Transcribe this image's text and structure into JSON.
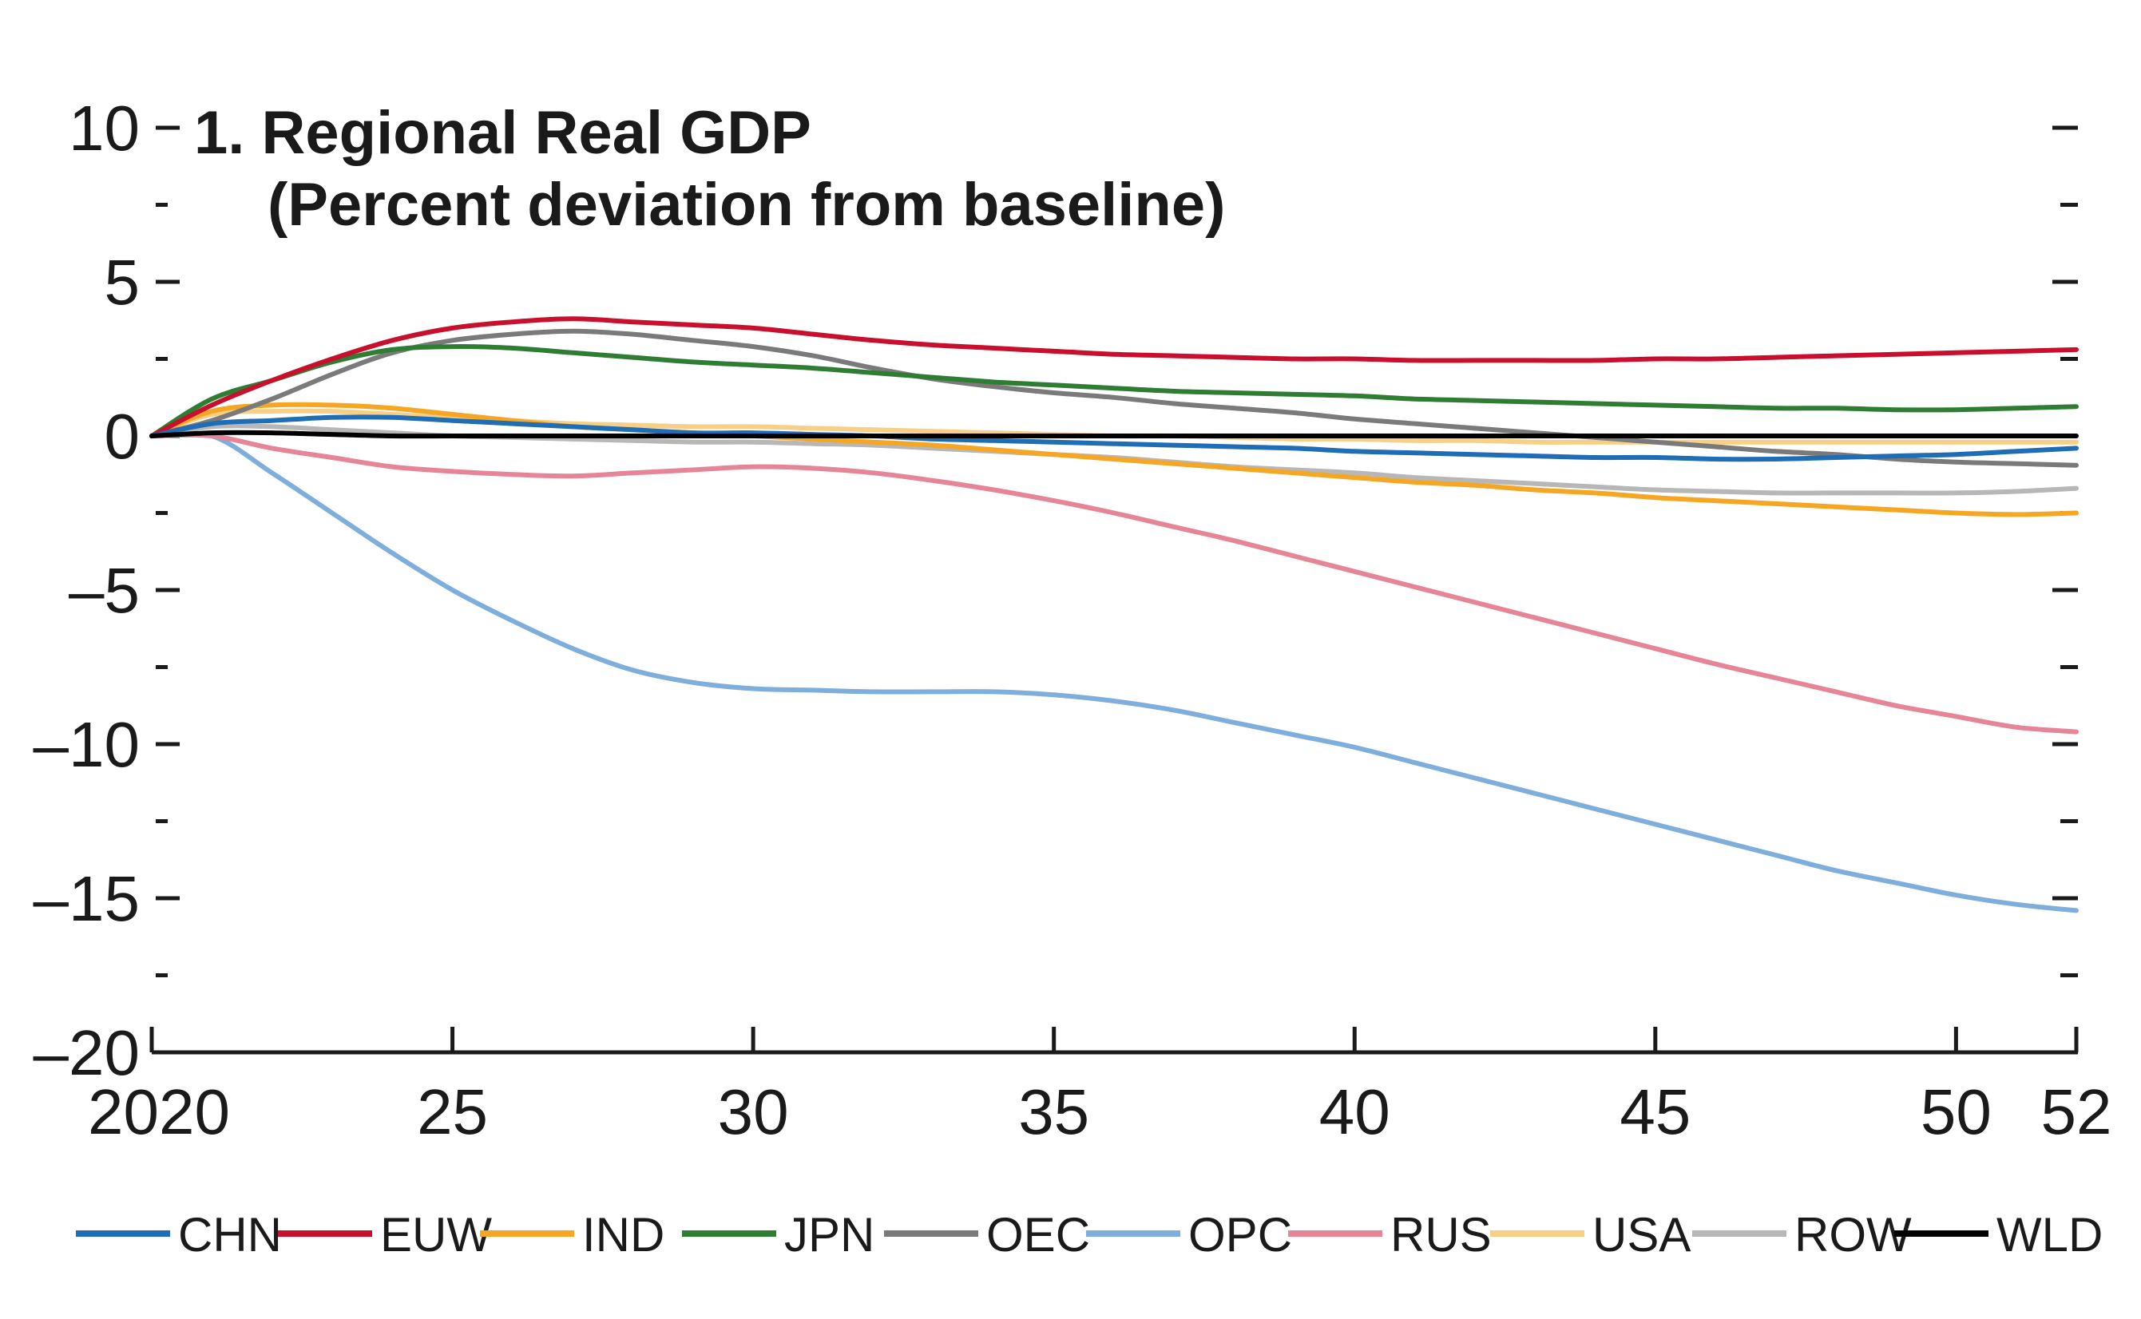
{
  "chart_data": {
    "type": "line",
    "title": "1. Regional Real GDP",
    "subtitle": "(Percent deviation from baseline)",
    "xlabel": "",
    "ylabel": "",
    "xlim": [
      2020,
      2052
    ],
    "ylim": [
      -20,
      10
    ],
    "x_ticks": [
      {
        "value": 2020,
        "label": "2020"
      },
      {
        "value": 2025,
        "label": "25"
      },
      {
        "value": 2030,
        "label": "30"
      },
      {
        "value": 2035,
        "label": "35"
      },
      {
        "value": 2040,
        "label": "40"
      },
      {
        "value": 2045,
        "label": "45"
      },
      {
        "value": 2050,
        "label": "50"
      },
      {
        "value": 2052,
        "label": "52"
      }
    ],
    "y_ticks": [
      {
        "value": 10,
        "label": "10"
      },
      {
        "value": 5,
        "label": "5"
      },
      {
        "value": 0,
        "label": "0"
      },
      {
        "value": -5,
        "label": "–5"
      },
      {
        "value": -10,
        "label": "–10"
      },
      {
        "value": -15,
        "label": "–15"
      },
      {
        "value": -20,
        "label": "–20"
      }
    ],
    "y_minor_ticks": [
      7.5,
      2.5,
      -2.5,
      -7.5,
      -12.5,
      -17.5
    ],
    "grid": false,
    "legend_position": "bottom",
    "x": [
      2020,
      2021,
      2022,
      2023,
      2024,
      2025,
      2026,
      2027,
      2028,
      2029,
      2030,
      2031,
      2032,
      2033,
      2034,
      2035,
      2036,
      2037,
      2038,
      2039,
      2040,
      2041,
      2042,
      2043,
      2044,
      2045,
      2046,
      2047,
      2048,
      2049,
      2050,
      2051,
      2052
    ],
    "series": [
      {
        "name": "CHN",
        "color": "#1f6db5",
        "values": [
          0,
          0.4,
          0.5,
          0.6,
          0.6,
          0.5,
          0.4,
          0.3,
          0.2,
          0.1,
          0.1,
          0.05,
          0,
          -0.1,
          -0.15,
          -0.2,
          -0.25,
          -0.3,
          -0.35,
          -0.4,
          -0.5,
          -0.55,
          -0.6,
          -0.65,
          -0.7,
          -0.7,
          -0.75,
          -0.75,
          -0.7,
          -0.65,
          -0.6,
          -0.5,
          -0.4
        ]
      },
      {
        "name": "EUW",
        "color": "#c8102e",
        "values": [
          0,
          1.0,
          1.8,
          2.5,
          3.1,
          3.5,
          3.7,
          3.8,
          3.7,
          3.6,
          3.5,
          3.3,
          3.1,
          2.95,
          2.85,
          2.75,
          2.65,
          2.6,
          2.55,
          2.5,
          2.5,
          2.45,
          2.45,
          2.45,
          2.45,
          2.5,
          2.5,
          2.55,
          2.6,
          2.65,
          2.7,
          2.75,
          2.8
        ]
      },
      {
        "name": "IND",
        "color": "#f5a623",
        "values": [
          0,
          0.8,
          1.0,
          1.0,
          0.9,
          0.7,
          0.5,
          0.3,
          0.2,
          0.1,
          0,
          -0.1,
          -0.2,
          -0.3,
          -0.45,
          -0.6,
          -0.75,
          -0.9,
          -1.05,
          -1.2,
          -1.35,
          -1.5,
          -1.6,
          -1.75,
          -1.85,
          -2.0,
          -2.1,
          -2.2,
          -2.3,
          -2.4,
          -2.5,
          -2.55,
          -2.5
        ]
      },
      {
        "name": "JPN",
        "color": "#2e7d32",
        "values": [
          0,
          1.2,
          1.8,
          2.4,
          2.8,
          2.9,
          2.85,
          2.7,
          2.55,
          2.4,
          2.3,
          2.2,
          2.05,
          1.9,
          1.75,
          1.65,
          1.55,
          1.45,
          1.4,
          1.35,
          1.3,
          1.2,
          1.15,
          1.1,
          1.05,
          1.0,
          0.95,
          0.9,
          0.9,
          0.85,
          0.85,
          0.9,
          0.95
        ]
      },
      {
        "name": "OEC",
        "color": "#7a7a7a",
        "values": [
          0,
          0.5,
          1.2,
          2.0,
          2.7,
          3.1,
          3.3,
          3.4,
          3.3,
          3.1,
          2.9,
          2.6,
          2.2,
          1.85,
          1.6,
          1.4,
          1.25,
          1.05,
          0.9,
          0.75,
          0.55,
          0.4,
          0.25,
          0.1,
          -0.05,
          -0.2,
          -0.35,
          -0.5,
          -0.6,
          -0.75,
          -0.85,
          -0.9,
          -0.95
        ]
      },
      {
        "name": "OPC",
        "color": "#7eaedc",
        "values": [
          0,
          0,
          -1.2,
          -2.5,
          -3.8,
          -5.0,
          -6.0,
          -6.9,
          -7.6,
          -8.0,
          -8.2,
          -8.25,
          -8.3,
          -8.3,
          -8.3,
          -8.4,
          -8.6,
          -8.9,
          -9.3,
          -9.7,
          -10.1,
          -10.6,
          -11.1,
          -11.6,
          -12.1,
          -12.6,
          -13.1,
          -13.6,
          -14.1,
          -14.5,
          -14.9,
          -15.2,
          -15.4
        ]
      },
      {
        "name": "RUS",
        "color": "#e58597",
        "values": [
          0,
          0,
          -0.4,
          -0.7,
          -1.0,
          -1.15,
          -1.25,
          -1.3,
          -1.2,
          -1.1,
          -1.0,
          -1.05,
          -1.2,
          -1.45,
          -1.75,
          -2.1,
          -2.5,
          -2.95,
          -3.4,
          -3.9,
          -4.4,
          -4.9,
          -5.4,
          -5.9,
          -6.4,
          -6.9,
          -7.4,
          -7.85,
          -8.3,
          -8.75,
          -9.1,
          -9.45,
          -9.6
        ]
      },
      {
        "name": "USA",
        "color": "#f8cf86",
        "values": [
          0,
          0.7,
          0.8,
          0.8,
          0.7,
          0.6,
          0.5,
          0.4,
          0.35,
          0.3,
          0.3,
          0.25,
          0.2,
          0.15,
          0.1,
          0.05,
          0,
          0,
          -0.05,
          -0.1,
          -0.1,
          -0.15,
          -0.15,
          -0.2,
          -0.2,
          -0.2,
          -0.2,
          -0.2,
          -0.2,
          -0.2,
          -0.2,
          -0.2,
          -0.2
        ]
      },
      {
        "name": "ROW",
        "color": "#b7b7b7",
        "values": [
          0,
          0.3,
          0.3,
          0.2,
          0.1,
          0,
          -0.05,
          -0.1,
          -0.15,
          -0.2,
          -0.2,
          -0.25,
          -0.3,
          -0.4,
          -0.5,
          -0.6,
          -0.7,
          -0.85,
          -1.0,
          -1.1,
          -1.2,
          -1.35,
          -1.45,
          -1.55,
          -1.65,
          -1.75,
          -1.8,
          -1.85,
          -1.85,
          -1.85,
          -1.85,
          -1.8,
          -1.7
        ]
      },
      {
        "name": "WLD",
        "color": "#000000",
        "values": [
          0,
          0.1,
          0.1,
          0.05,
          0,
          0,
          0,
          0,
          0,
          0,
          0,
          0,
          0,
          0,
          0,
          0,
          0,
          0,
          0,
          0,
          0,
          0,
          0,
          0,
          0,
          0,
          0,
          0,
          0,
          0,
          0,
          0,
          0
        ]
      }
    ]
  }
}
